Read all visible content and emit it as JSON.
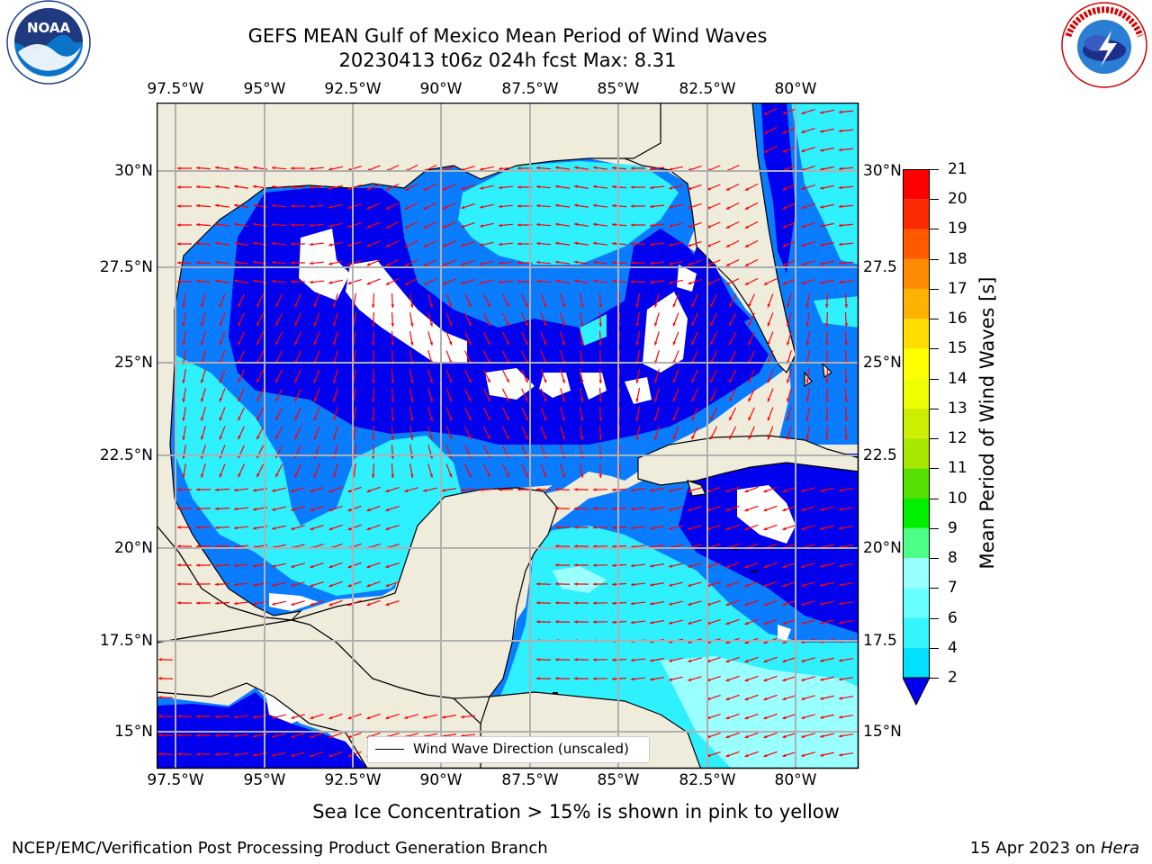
{
  "header": {
    "title_line1": "GEFS MEAN Gulf of Mexico Mean Period of Wind Waves",
    "title_line2": "20230413 t06z 024h fcst   Max: 8.31"
  },
  "logos": {
    "left": {
      "text": "NOAA",
      "ring_text": "NATIONAL OCEANIC AND ATMOSPHERIC ADMINISTRATION · U.S. DEPARTMENT OF COMMERCE"
    },
    "right": {
      "ring_text": "NATIONAL WEATHER SERVICE"
    }
  },
  "map": {
    "lon_labels": [
      "97.5°W",
      "95°W",
      "92.5°W",
      "90°W",
      "87.5°W",
      "85°W",
      "82.5°W",
      "80°W"
    ],
    "lat_labels_left": [
      "30°N",
      "27.5°N",
      "25°N",
      "22.5°N",
      "20°N",
      "17.5°N",
      "15°N"
    ],
    "lat_labels_right": [
      "30°N",
      "27.5",
      "25°N",
      "22.5",
      "20°N",
      "17.5",
      "15°N"
    ],
    "legend": "Wind Wave Direction (unscaled)",
    "colors": {
      "land": "#efecdc",
      "ocean_dark": "#0000ee",
      "ocean_mid": "#0a7cff",
      "ocean_light": "#2ff0ff",
      "ocean_pale": "#99ffff",
      "arrow": "#ff0000",
      "grid": "#b0b0b0"
    }
  },
  "colorbar": {
    "label": "Mean Period of Wind Waves [s]",
    "ticks": [
      "2",
      "4",
      "6",
      "7",
      "8",
      "9",
      "10",
      "11",
      "12",
      "13",
      "14",
      "15",
      "16",
      "17",
      "18",
      "19",
      "20",
      "21"
    ],
    "colors": [
      "#0062ff",
      "#00e0ff",
      "#35f5ff",
      "#67ffff",
      "#99ffff",
      "#4dff86",
      "#00f000",
      "#55e000",
      "#a8e800",
      "#ccee00",
      "#eeff00",
      "#ffff00",
      "#ffdd00",
      "#ffb200",
      "#ff8c00",
      "#ff5a00",
      "#ff2a00",
      "#ff0000"
    ]
  },
  "caption": "Sea Ice Concentration > 15% is shown in pink to yellow",
  "footer": {
    "left": "NCEP/EMC/Verification Post Processing Product Generation Branch",
    "right_prefix": "15 Apr 2023 on",
    "right_host": "Hera"
  }
}
